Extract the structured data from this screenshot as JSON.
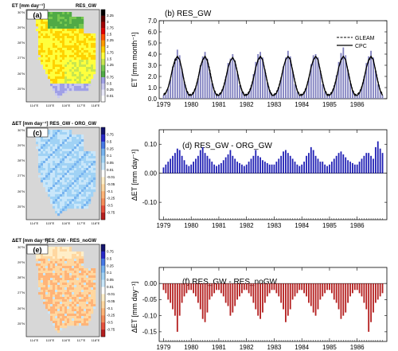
{
  "figure": {
    "panels": [
      {
        "id": "a",
        "label": "(a)",
        "header_left": "ET [mm day⁻¹]",
        "header_right": "RES_GW"
      },
      {
        "id": "c",
        "label": "(c)",
        "header_left": "ΔET [mm day⁻¹]",
        "header_right": "RES_GW - ORG_GW"
      },
      {
        "id": "e",
        "label": "(e)",
        "header_left": "ΔET [mm day⁻¹]",
        "header_right": "RES_GW - RES_noGW"
      }
    ],
    "map_axes": {
      "lat_ticks": [
        "30°N",
        "29°N",
        "28°N",
        "27°N",
        "26°N",
        "25°N"
      ],
      "lon_ticks": [
        "114°E",
        "115°E",
        "116°E",
        "117°E",
        "118°E"
      ]
    },
    "colorbars": {
      "et": {
        "labels": [
          "3.25",
          "3",
          "2.75",
          "2.5",
          "2.25",
          "2",
          "1.75",
          "1.5",
          "1.25",
          "1",
          "0.75",
          "0.5",
          "0.25",
          "0.01"
        ],
        "colors": [
          "#000000",
          "#5a0000",
          "#a00000",
          "#e00000",
          "#ff5000",
          "#ff9a00",
          "#ffd200",
          "#ffff3c",
          "#c8e650",
          "#78c850",
          "#50aa46",
          "#a0a0e6",
          "#c8c8f0",
          "#e8e8f8",
          "#ffffff"
        ]
      },
      "diff": {
        "labels": [
          "0.75",
          "0.5",
          "0.25",
          "0.1",
          "0.05",
          "0.01",
          "-0.01",
          "-0.05",
          "-0.1",
          "-0.25",
          "-0.5",
          "-0.75"
        ],
        "colors": [
          "#14146e",
          "#2828c8",
          "#4678e6",
          "#78b4f0",
          "#a0d2f5",
          "#c8e6fa",
          "#ffffff",
          "#ffeec8",
          "#ffd7a0",
          "#ffb478",
          "#f58c5a",
          "#e6503c",
          "#b41e1e"
        ]
      }
    }
  },
  "chart_data": [
    {
      "type": "bar",
      "id": "b",
      "title": "(b) RES_GW",
      "ylabel": "ET [mm month⁻¹]",
      "ylim": [
        0,
        7
      ],
      "yticks": [
        "0.0",
        "1.0",
        "2.0",
        "3.0",
        "4.0",
        "5.0",
        "6.0",
        "7.0"
      ],
      "xticks": [
        "1979",
        "1980",
        "1981",
        "1982",
        "1983",
        "1984",
        "1985",
        "1986"
      ],
      "x_range": [
        "1979-01",
        "1986-12"
      ],
      "bar_color": "#7f7fbf",
      "legend_position": "top-right",
      "legend": [
        "GLEAM",
        "CPC"
      ],
      "series": [
        {
          "name": "RES_GW",
          "values": [
            0.3,
            0.4,
            0.9,
            1.7,
            2.9,
            3.6,
            4.4,
            3.9,
            2.7,
            1.5,
            0.7,
            0.4,
            0.4,
            0.5,
            1.0,
            1.8,
            3.0,
            3.8,
            4.2,
            3.6,
            2.4,
            1.4,
            0.6,
            0.3,
            0.4,
            0.5,
            1.1,
            2.0,
            3.2,
            3.6,
            4.0,
            3.4,
            2.3,
            1.2,
            0.6,
            0.4,
            0.4,
            0.6,
            1.2,
            2.2,
            3.3,
            4.0,
            4.2,
            3.7,
            2.6,
            1.4,
            0.7,
            0.4,
            0.3,
            0.5,
            1.0,
            1.9,
            2.9,
            3.7,
            4.3,
            3.8,
            2.6,
            1.3,
            0.6,
            0.3,
            0.4,
            0.5,
            1.0,
            1.8,
            3.1,
            3.9,
            4.0,
            3.7,
            2.5,
            1.3,
            0.6,
            0.4,
            0.4,
            0.6,
            1.2,
            2.1,
            3.3,
            4.1,
            4.6,
            3.9,
            2.6,
            1.4,
            0.7,
            0.4,
            0.3,
            0.5,
            1.1,
            2.0,
            3.2,
            3.8,
            4.3,
            3.7,
            2.5,
            1.3,
            0.6,
            0.3
          ]
        },
        {
          "name": "GLEAM",
          "values": [
            0.4,
            0.6,
            1.0,
            1.8,
            2.7,
            3.3,
            3.7,
            3.5,
            2.6,
            1.6,
            0.8,
            0.4,
            0.4,
            0.6,
            1.1,
            1.9,
            2.8,
            3.4,
            3.8,
            3.5,
            2.7,
            1.6,
            0.8,
            0.4,
            0.4,
            0.6,
            1.1,
            1.9,
            2.8,
            3.4,
            3.7,
            3.4,
            2.5,
            1.5,
            0.8,
            0.4,
            0.4,
            0.6,
            1.1,
            1.9,
            2.8,
            3.4,
            3.7,
            3.5,
            2.6,
            1.6,
            0.8,
            0.4,
            0.4,
            0.6,
            1.1,
            1.9,
            2.8,
            3.5,
            3.8,
            3.6,
            2.6,
            1.6,
            0.8,
            0.4,
            0.4,
            0.6,
            1.1,
            1.9,
            2.8,
            3.4,
            3.8,
            3.5,
            2.6,
            1.6,
            0.8,
            0.4,
            0.4,
            0.6,
            1.1,
            1.9,
            2.8,
            3.4,
            3.8,
            3.5,
            2.6,
            1.6,
            0.8,
            0.4,
            0.4,
            0.6,
            1.1,
            1.9,
            2.8,
            3.4,
            3.7,
            3.5,
            2.6,
            1.6,
            0.8,
            0.4
          ]
        },
        {
          "name": "CPC",
          "values": [
            0.3,
            0.5,
            1.0,
            1.8,
            2.8,
            3.5,
            3.8,
            3.5,
            2.6,
            1.5,
            0.7,
            0.3,
            0.3,
            0.5,
            1.0,
            1.8,
            2.9,
            3.5,
            3.8,
            3.4,
            2.5,
            1.5,
            0.7,
            0.3,
            0.3,
            0.5,
            1.0,
            1.8,
            2.8,
            3.4,
            3.7,
            3.3,
            2.4,
            1.4,
            0.7,
            0.3,
            0.3,
            0.5,
            1.0,
            1.8,
            2.8,
            3.5,
            3.8,
            3.5,
            2.5,
            1.5,
            0.7,
            0.3,
            0.3,
            0.5,
            1.0,
            1.8,
            2.8,
            3.5,
            3.8,
            3.5,
            2.5,
            1.5,
            0.7,
            0.3,
            0.3,
            0.5,
            1.0,
            1.8,
            2.8,
            3.5,
            3.8,
            3.5,
            2.5,
            1.5,
            0.7,
            0.3,
            0.3,
            0.5,
            1.0,
            1.8,
            2.8,
            3.5,
            3.8,
            3.5,
            2.5,
            1.5,
            0.7,
            0.3,
            0.3,
            0.5,
            1.0,
            1.8,
            2.8,
            3.5,
            3.8,
            3.5,
            2.5,
            1.5,
            0.7,
            0.3
          ]
        }
      ]
    },
    {
      "type": "bar",
      "id": "d",
      "title": "(d) RES_GW - ORG_GW",
      "ylabel": "ΔET [mm day⁻¹]",
      "ylim": [
        -0.16,
        0.15
      ],
      "yticks": [
        "0.10",
        "0.00",
        "-0.10"
      ],
      "xticks": [
        "1979",
        "1980",
        "1981",
        "1982",
        "1983",
        "1984",
        "1985",
        "1986"
      ],
      "x_range": [
        "1979-01",
        "1986-12"
      ],
      "bar_color": "#1f1fb4",
      "values": [
        0.02,
        0.03,
        0.04,
        0.05,
        0.06,
        0.07,
        0.085,
        0.08,
        0.06,
        0.045,
        0.03,
        0.025,
        0.03,
        0.04,
        0.05,
        0.06,
        0.08,
        0.09,
        0.07,
        0.06,
        0.05,
        0.04,
        0.03,
        0.025,
        0.03,
        0.035,
        0.045,
        0.055,
        0.065,
        0.08,
        0.06,
        0.05,
        0.04,
        0.035,
        0.03,
        0.025,
        0.03,
        0.04,
        0.05,
        0.06,
        0.08,
        0.06,
        0.055,
        0.045,
        0.04,
        0.035,
        0.03,
        0.03,
        0.03,
        0.04,
        0.05,
        0.06,
        0.075,
        0.08,
        0.07,
        0.06,
        0.05,
        0.04,
        0.03,
        0.025,
        0.03,
        0.04,
        0.06,
        0.07,
        0.09,
        0.08,
        0.06,
        0.05,
        0.04,
        0.04,
        0.03,
        0.025,
        0.03,
        0.04,
        0.05,
        0.06,
        0.07,
        0.075,
        0.065,
        0.055,
        0.045,
        0.04,
        0.035,
        0.03,
        0.03,
        0.04,
        0.05,
        0.06,
        0.07,
        0.07,
        0.06,
        0.05,
        0.09,
        0.11,
        0.085,
        0.07
      ]
    },
    {
      "type": "bar",
      "id": "f",
      "title": "(f) RES_GW - RES_noGW",
      "ylabel": "ΔET [mm day⁻¹]",
      "ylim": [
        -0.18,
        0.05
      ],
      "yticks": [
        "0.00",
        "-0.05",
        "-0.10",
        "-0.15"
      ],
      "xticks": [
        "1979",
        "1980",
        "1981",
        "1982",
        "1983",
        "1984",
        "1985",
        "1986"
      ],
      "x_range": [
        "1979-01",
        "1986-12"
      ],
      "bar_color": "#b41e1e",
      "values": [
        -0.02,
        -0.03,
        -0.05,
        -0.06,
        -0.08,
        -0.1,
        -0.15,
        -0.1,
        -0.06,
        -0.04,
        -0.03,
        -0.02,
        -0.02,
        -0.03,
        -0.04,
        -0.06,
        -0.08,
        -0.11,
        -0.12,
        -0.09,
        -0.05,
        -0.04,
        -0.03,
        -0.02,
        -0.02,
        -0.03,
        -0.04,
        -0.06,
        -0.07,
        -0.1,
        -0.09,
        -0.07,
        -0.05,
        -0.04,
        -0.03,
        -0.02,
        -0.02,
        -0.03,
        -0.04,
        -0.06,
        -0.08,
        -0.1,
        -0.11,
        -0.09,
        -0.06,
        -0.04,
        -0.03,
        -0.02,
        -0.02,
        -0.03,
        -0.04,
        -0.06,
        -0.08,
        -0.12,
        -0.1,
        -0.08,
        -0.05,
        -0.04,
        -0.03,
        -0.02,
        -0.02,
        -0.03,
        -0.04,
        -0.06,
        -0.07,
        -0.09,
        -0.1,
        -0.08,
        -0.05,
        -0.04,
        -0.03,
        -0.02,
        -0.02,
        -0.03,
        -0.05,
        -0.06,
        -0.08,
        -0.11,
        -0.1,
        -0.09,
        -0.06,
        -0.04,
        -0.03,
        -0.02,
        -0.02,
        -0.03,
        -0.04,
        -0.06,
        -0.08,
        -0.15,
        -0.12,
        -0.09,
        -0.06,
        -0.05,
        -0.04,
        -0.03
      ]
    }
  ]
}
